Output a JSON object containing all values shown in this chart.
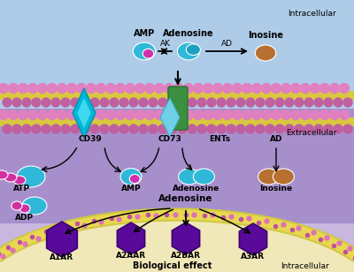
{
  "bg_top_color": "#b0d0ec",
  "bg_mid_color": "#9888c8",
  "bg_bottom_color": "#c8b8e0",
  "bg_cell_color": "#f0e8b8",
  "membrane_yellow": "#d8d060",
  "membrane_dot1": "#e080c0",
  "membrane_dot2": "#c060a0",
  "ent_color": "#3a9040",
  "cd39_color": "#00b8d8",
  "cd73_color": "#80d8e8",
  "cyan_mol": "#30b8d8",
  "magenta_mol": "#d030b0",
  "brown_mol": "#b87830",
  "receptor_color": "#5a0a9a",
  "receptor_edge": "#3a0070",
  "arrow_color": "#222222",
  "text_color": "#111111",
  "intracellular_label": "Intracellular",
  "extracellular_label": "Extracellular",
  "biological_label": "Biological effect",
  "intracellular_bottom": "Intracellular"
}
